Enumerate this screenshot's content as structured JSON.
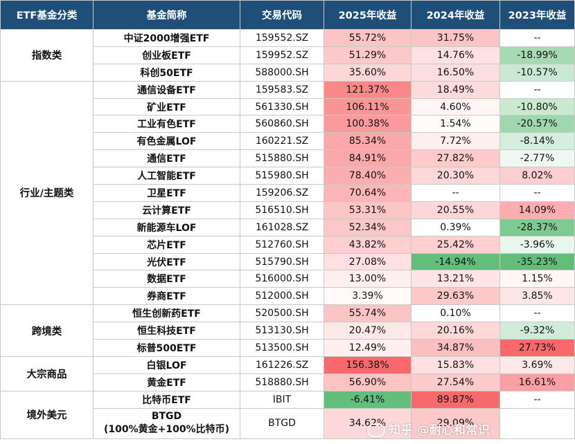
{
  "headers": [
    "ETF基金分类",
    "基金简称",
    "交易代码",
    "2025年收益",
    "2024年收益",
    "2023年收益"
  ],
  "groups": [
    {
      "category": "指数类",
      "rows": [
        {
          "name": "中证2000增强ETF",
          "code": "159552.SZ",
          "r2025": "55.72%",
          "r2024": "31.75%",
          "r2023": "--"
        },
        {
          "name": "创业板ETF",
          "code": "159952.SZ",
          "r2025": "51.29%",
          "r2024": "14.76%",
          "r2023": "-18.99%"
        },
        {
          "name": "科创50ETF",
          "code": "588000.SH",
          "r2025": "35.60%",
          "r2024": "16.50%",
          "r2023": "-10.57%"
        }
      ]
    },
    {
      "category": "行业/主题类",
      "rows": [
        {
          "name": "通信设备ETF",
          "code": "159583.SZ",
          "r2025": "121.37%",
          "r2024": "18.49%",
          "r2023": "--"
        },
        {
          "name": "矿业ETF",
          "code": "561330.SH",
          "r2025": "106.11%",
          "r2024": "4.60%",
          "r2023": "-10.80%"
        },
        {
          "name": "工业有色ETF",
          "code": "560860.SH",
          "r2025": "100.38%",
          "r2024": "1.54%",
          "r2023": "-20.57%"
        },
        {
          "name": "有色金属LOF",
          "code": "160221.SZ",
          "r2025": "85.34%",
          "r2024": "7.72%",
          "r2023": "-8.14%"
        },
        {
          "name": "通信ETF",
          "code": "515880.SH",
          "r2025": "84.91%",
          "r2024": "27.82%",
          "r2023": "-2.77%"
        },
        {
          "name": "人工智能ETF",
          "code": "515980.SH",
          "r2025": "78.40%",
          "r2024": "20.30%",
          "r2023": "8.02%"
        },
        {
          "name": "卫星ETF",
          "code": "159206.SZ",
          "r2025": "70.64%",
          "r2024": "--",
          "r2023": "--"
        },
        {
          "name": "云计算ETF",
          "code": "516510.SH",
          "r2025": "53.31%",
          "r2024": "20.55%",
          "r2023": "14.09%"
        },
        {
          "name": "新能源车LOF",
          "code": "161028.SZ",
          "r2025": "52.34%",
          "r2024": "0.39%",
          "r2023": "-28.37%"
        },
        {
          "name": "芯片ETF",
          "code": "512760.SH",
          "r2025": "43.82%",
          "r2024": "25.42%",
          "r2023": "-3.96%"
        },
        {
          "name": "光伏ETF",
          "code": "515790.SH",
          "r2025": "27.08%",
          "r2024": "-14.94%",
          "r2023": "-35.23%"
        },
        {
          "name": "数据ETF",
          "code": "516000.SH",
          "r2025": "13.00%",
          "r2024": "13.21%",
          "r2023": "1.15%"
        },
        {
          "name": "券商ETF",
          "code": "512000.SH",
          "r2025": "3.39%",
          "r2024": "29.63%",
          "r2023": "3.85%"
        }
      ]
    },
    {
      "category": "跨境类",
      "rows": [
        {
          "name": "恒生创新药ETF",
          "code": "520500.SH",
          "r2025": "55.74%",
          "r2024": "0.10%",
          "r2023": "--"
        },
        {
          "name": "恒生科技ETF",
          "code": "513130.SH",
          "r2025": "20.47%",
          "r2024": "20.16%",
          "r2023": "-9.32%"
        },
        {
          "name": "标普500ETF",
          "code": "513500.SH",
          "r2025": "12.49%",
          "r2024": "34.87%",
          "r2023": "27.73%"
        }
      ]
    },
    {
      "category": "大宗商品",
      "rows": [
        {
          "name": "白银LOF",
          "code": "161226.SZ",
          "r2025": "156.38%",
          "r2024": "15.83%",
          "r2023": "3.69%"
        },
        {
          "name": "黄金ETF",
          "code": "518880.SH",
          "r2025": "56.90%",
          "r2024": "27.54%",
          "r2023": "16.61%"
        }
      ]
    },
    {
      "category": "境外美元",
      "rows": [
        {
          "name": "比特币ETF",
          "code": "IBIT",
          "r2025": "-6.41%",
          "r2024": "89.87%",
          "r2023": "--"
        },
        {
          "name": "BTGD\n(100%黄金+100%比特币)",
          "code": "BTGD",
          "r2025": "34.62%",
          "r2024": "29.09%",
          "r2023": ""
        }
      ]
    }
  ],
  "watermark": "知乎 @耐心和常识",
  "colors": {
    "header_bg": "#1f4e79",
    "strong_red": "#f8696b",
    "strong_green": "#63be7b",
    "white": "#ffffff"
  }
}
